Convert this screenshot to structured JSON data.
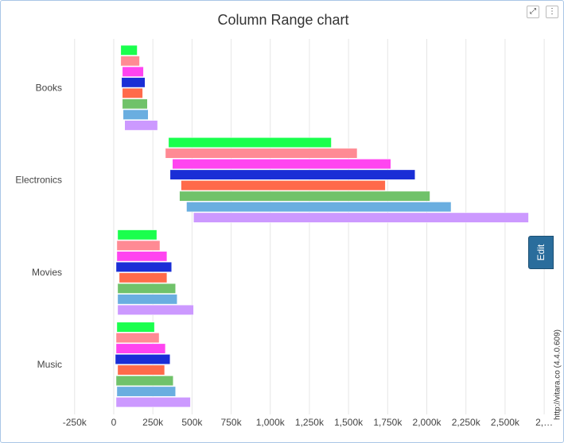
{
  "chart_data": {
    "type": "columnrange",
    "title": "Column Range chart",
    "categories": [
      "Books",
      "Electronics",
      "Movies",
      "Music"
    ],
    "series": [
      {
        "color": "#1aff4d",
        "low": [
          45000,
          350000,
          25000,
          20000
        ],
        "high": [
          150000,
          1390000,
          275000,
          260000
        ]
      },
      {
        "color": "#ff8a94",
        "low": [
          45000,
          330000,
          20000,
          15000
        ],
        "high": [
          165000,
          1555000,
          295000,
          290000
        ]
      },
      {
        "color": "#ff44f0",
        "low": [
          55000,
          375000,
          20000,
          15000
        ],
        "high": [
          190000,
          1770000,
          340000,
          330000
        ]
      },
      {
        "color": "#1a2ed6",
        "low": [
          50000,
          360000,
          15000,
          10000
        ],
        "high": [
          200000,
          1925000,
          370000,
          360000
        ]
      },
      {
        "color": "#ff6a4a",
        "low": [
          55000,
          430000,
          35000,
          25000
        ],
        "high": [
          185000,
          1735000,
          340000,
          325000
        ]
      },
      {
        "color": "#70c26a",
        "low": [
          55000,
          420000,
          25000,
          15000
        ],
        "high": [
          215000,
          2020000,
          395000,
          380000
        ]
      },
      {
        "color": "#6aaee0",
        "low": [
          60000,
          465000,
          25000,
          20000
        ],
        "high": [
          220000,
          2155000,
          405000,
          395000
        ]
      },
      {
        "color": "#cc99ff",
        "low": [
          70000,
          510000,
          25000,
          15000
        ],
        "high": [
          280000,
          2650000,
          510000,
          490000
        ]
      }
    ],
    "xlim": [
      -315000,
      2785000
    ],
    "xticks": [
      {
        "value": -250000,
        "label": "-250k"
      },
      0,
      {
        "value": 250000,
        "label": "250k"
      },
      {
        "value": 500000,
        "label": "500k"
      },
      {
        "value": 750000,
        "label": "750k"
      },
      {
        "value": 1000000,
        "label": "1,000k"
      },
      {
        "value": 1250000,
        "label": "1,250k"
      },
      {
        "value": 1500000,
        "label": "1,500k"
      },
      {
        "value": 1750000,
        "label": "1,750k"
      },
      {
        "value": 2000000,
        "label": "2,000k"
      },
      {
        "value": 2250000,
        "label": "2,250k"
      },
      {
        "value": 2500000,
        "label": "2,500k"
      },
      {
        "value": 2750000,
        "label": "2,…"
      }
    ],
    "grid": true
  },
  "edit_button": "Edit",
  "watermark": "http://vitara.co (4.4.0.609)"
}
